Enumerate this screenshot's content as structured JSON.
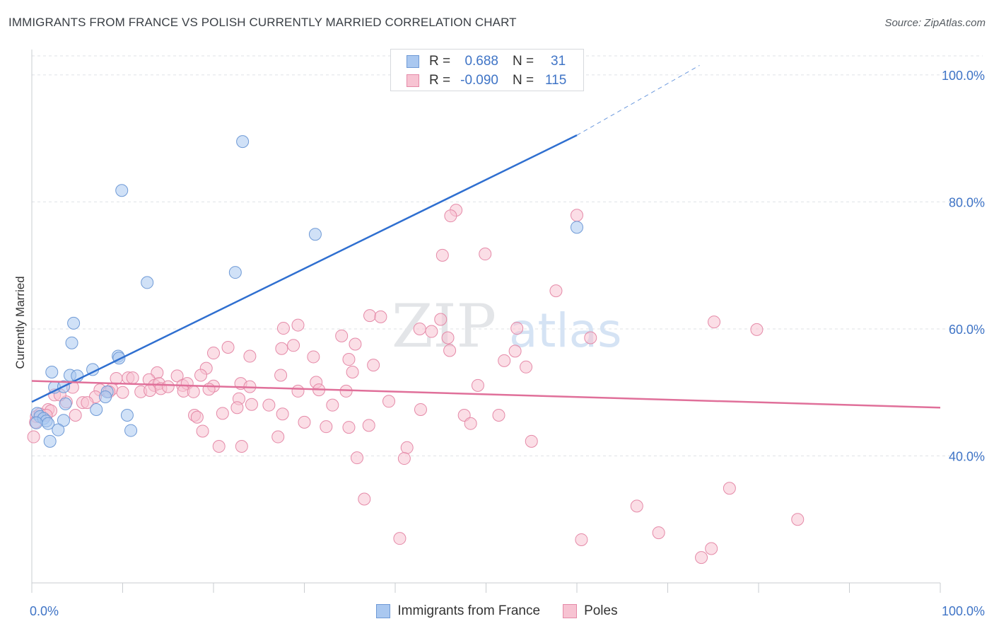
{
  "header": {
    "title": "IMMIGRANTS FROM FRANCE VS POLISH CURRENTLY MARRIED CORRELATION CHART",
    "source": "Source: ZipAtlas.com"
  },
  "watermark": {
    "zip": "ZIP",
    "atlas": "atlas"
  },
  "legend": {
    "r_label": "R =",
    "n_label": "N =",
    "rows": [
      {
        "r": "0.688",
        "n": "31",
        "color": "#aac8f0",
        "border": "#6f9ad6"
      },
      {
        "r": "-0.090",
        "n": "115",
        "color": "#f7c3d2",
        "border": "#e58aa8"
      }
    ]
  },
  "chart_data": {
    "type": "scatter",
    "title": "IMMIGRANTS FROM FRANCE VS POLISH CURRENTLY MARRIED CORRELATION CHART",
    "xlabel": "",
    "ylabel": "Currently Married",
    "xlim": [
      0,
      100
    ],
    "ylim": [
      20,
      104
    ],
    "x_tick_labels": [
      "0.0%",
      "100.0%"
    ],
    "y_ticks": [
      {
        "value": 40,
        "label": "40.0%"
      },
      {
        "value": 60,
        "label": "60.0%"
      },
      {
        "value": 80,
        "label": "80.0%"
      },
      {
        "value": 100,
        "label": "100.0%"
      }
    ],
    "grid": true,
    "legend_position": "bottom",
    "series": [
      {
        "name": "Immigrants from France",
        "color": "#aac8f0",
        "stroke": "#6f9ad6",
        "line_color": "#2f6fd0",
        "trend": {
          "x0": 0,
          "y0": 48.5,
          "x1": 60,
          "y1": 90.5,
          "dash_to_x": 73.5,
          "dash_to_y": 101.5
        },
        "points": [
          [
            23.2,
            89.5
          ],
          [
            9.9,
            81.8
          ],
          [
            31.2,
            74.9
          ],
          [
            60.0,
            76.0
          ],
          [
            22.4,
            68.9
          ],
          [
            12.7,
            67.3
          ],
          [
            4.6,
            60.9
          ],
          [
            4.4,
            57.8
          ],
          [
            9.5,
            55.7
          ],
          [
            9.6,
            55.4
          ],
          [
            6.7,
            53.6
          ],
          [
            2.2,
            53.2
          ],
          [
            4.2,
            52.7
          ],
          [
            5.0,
            52.6
          ],
          [
            2.5,
            50.8
          ],
          [
            3.5,
            50.9
          ],
          [
            8.3,
            50.1
          ],
          [
            8.1,
            49.3
          ],
          [
            3.7,
            48.2
          ],
          [
            7.1,
            47.3
          ],
          [
            0.6,
            46.7
          ],
          [
            0.9,
            46.2
          ],
          [
            10.5,
            46.4
          ],
          [
            1.3,
            45.9
          ],
          [
            1.6,
            45.5
          ],
          [
            3.5,
            45.6
          ],
          [
            0.5,
            45.2
          ],
          [
            1.8,
            45.1
          ],
          [
            2.9,
            44.1
          ],
          [
            10.9,
            44.0
          ],
          [
            2.0,
            42.3
          ]
        ]
      },
      {
        "name": "Poles",
        "color": "#f7c3d2",
        "stroke": "#e58aa8",
        "line_color": "#e0709a",
        "trend": {
          "x0": 0,
          "y0": 51.8,
          "x1": 100,
          "y1": 47.6
        },
        "points": [
          [
            46.7,
            78.7
          ],
          [
            46.1,
            77.8
          ],
          [
            60.0,
            77.9
          ],
          [
            45.2,
            71.6
          ],
          [
            49.9,
            71.8
          ],
          [
            57.7,
            66.0
          ],
          [
            37.2,
            62.1
          ],
          [
            38.4,
            61.9
          ],
          [
            45.0,
            61.5
          ],
          [
            75.1,
            61.1
          ],
          [
            29.3,
            60.6
          ],
          [
            27.7,
            60.1
          ],
          [
            42.7,
            60.0
          ],
          [
            44.0,
            59.6
          ],
          [
            53.4,
            60.1
          ],
          [
            79.8,
            59.9
          ],
          [
            34.1,
            58.9
          ],
          [
            45.8,
            58.6
          ],
          [
            61.5,
            58.6
          ],
          [
            35.6,
            57.6
          ],
          [
            21.6,
            57.1
          ],
          [
            27.5,
            56.9
          ],
          [
            28.8,
            57.4
          ],
          [
            46.0,
            56.6
          ],
          [
            53.2,
            56.5
          ],
          [
            20.0,
            56.2
          ],
          [
            31.0,
            55.6
          ],
          [
            24.0,
            55.7
          ],
          [
            34.9,
            55.2
          ],
          [
            52.0,
            55.0
          ],
          [
            37.6,
            54.3
          ],
          [
            54.4,
            54.0
          ],
          [
            19.2,
            53.8
          ],
          [
            13.8,
            53.1
          ],
          [
            35.3,
            53.2
          ],
          [
            27.4,
            52.7
          ],
          [
            16.0,
            52.6
          ],
          [
            18.6,
            52.7
          ],
          [
            9.3,
            52.2
          ],
          [
            10.6,
            52.3
          ],
          [
            11.1,
            52.3
          ],
          [
            12.9,
            52.0
          ],
          [
            31.3,
            51.6
          ],
          [
            13.5,
            51.1
          ],
          [
            14.0,
            51.4
          ],
          [
            16.6,
            51.1
          ],
          [
            17.1,
            51.4
          ],
          [
            14.2,
            50.6
          ],
          [
            20.0,
            51.0
          ],
          [
            23.0,
            51.4
          ],
          [
            24.0,
            50.9
          ],
          [
            29.3,
            50.2
          ],
          [
            7.5,
            50.4
          ],
          [
            4.5,
            50.8
          ],
          [
            15.0,
            50.9
          ],
          [
            12.0,
            50.1
          ],
          [
            13.0,
            50.3
          ],
          [
            16.7,
            50.2
          ],
          [
            19.5,
            50.5
          ],
          [
            8.8,
            50.5
          ],
          [
            31.6,
            50.4
          ],
          [
            8.5,
            50.1
          ],
          [
            10.0,
            50.0
          ],
          [
            17.8,
            50.1
          ],
          [
            34.6,
            50.2
          ],
          [
            49.1,
            51.1
          ],
          [
            7.0,
            49.3
          ],
          [
            22.8,
            49.0
          ],
          [
            39.3,
            48.6
          ],
          [
            24.2,
            48.1
          ],
          [
            26.1,
            48.0
          ],
          [
            33.1,
            48.0
          ],
          [
            22.6,
            47.6
          ],
          [
            5.6,
            48.4
          ],
          [
            6.1,
            48.4
          ],
          [
            3.8,
            48.5
          ],
          [
            2.5,
            49.6
          ],
          [
            3.1,
            49.6
          ],
          [
            1.8,
            47.3
          ],
          [
            2.1,
            47.1
          ],
          [
            42.8,
            47.3
          ],
          [
            0.5,
            46.2
          ],
          [
            0.9,
            46.6
          ],
          [
            1.6,
            46.4
          ],
          [
            4.8,
            46.4
          ],
          [
            21.0,
            46.7
          ],
          [
            27.6,
            46.6
          ],
          [
            17.9,
            46.4
          ],
          [
            47.6,
            46.4
          ],
          [
            51.4,
            46.4
          ],
          [
            18.2,
            46.1
          ],
          [
            30.0,
            45.3
          ],
          [
            37.1,
            44.8
          ],
          [
            32.4,
            44.6
          ],
          [
            34.9,
            44.5
          ],
          [
            48.3,
            45.1
          ],
          [
            18.8,
            43.9
          ],
          [
            27.1,
            43.0
          ],
          [
            55.0,
            42.3
          ],
          [
            20.6,
            41.5
          ],
          [
            23.1,
            41.5
          ],
          [
            41.3,
            41.3
          ],
          [
            0.2,
            43.0
          ],
          [
            0.4,
            45.3
          ],
          [
            35.8,
            39.7
          ],
          [
            41.0,
            39.6
          ],
          [
            36.6,
            33.2
          ],
          [
            66.6,
            32.1
          ],
          [
            76.8,
            34.9
          ],
          [
            84.3,
            30.0
          ],
          [
            40.5,
            27.0
          ],
          [
            60.5,
            26.8
          ],
          [
            69.0,
            27.9
          ],
          [
            73.7,
            24.0
          ],
          [
            74.8,
            25.4
          ]
        ]
      }
    ]
  }
}
